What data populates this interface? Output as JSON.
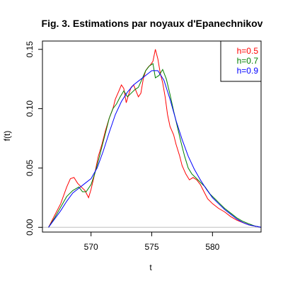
{
  "chart_data": {
    "type": "line",
    "title": "Fig. 3. Estimations par noyaux d'Epanechnikov",
    "xlabel": "t",
    "ylabel": "f(t)",
    "xlim": [
      566,
      584
    ],
    "ylim": [
      -0.004,
      0.157
    ],
    "x_ticks": [
      570,
      575,
      580
    ],
    "x_tick_labels": [
      "570",
      "575",
      "580"
    ],
    "y_ticks": [
      0.0,
      0.05,
      0.1,
      0.15
    ],
    "y_tick_labels": [
      "0.00",
      "0.05",
      "0.10",
      "0.15"
    ],
    "baseline": 0.0,
    "baseline_color": "#c0c0c0",
    "grid": false,
    "legend_position": "top-right",
    "series": [
      {
        "name": "h=0.5",
        "color": "#ff0000",
        "x": [
          566.5,
          567.0,
          567.5,
          568.0,
          568.3,
          568.6,
          568.9,
          569.2,
          569.5,
          569.8,
          570.0,
          570.3,
          570.6,
          570.9,
          571.2,
          571.5,
          571.8,
          572.0,
          572.3,
          572.5,
          572.7,
          572.9,
          573.1,
          573.3,
          573.5,
          573.7,
          573.9,
          574.1,
          574.3,
          574.5,
          574.7,
          574.9,
          575.1,
          575.3,
          575.5,
          575.7,
          575.9,
          576.1,
          576.3,
          576.5,
          576.8,
          577.0,
          577.3,
          577.5,
          577.8,
          578.1,
          578.4,
          578.7,
          579.0,
          579.3,
          579.6,
          580.0,
          580.5,
          581.0,
          581.5,
          582.0,
          582.5,
          583.0,
          583.5,
          584.0
        ],
        "y": [
          0.0,
          0.01,
          0.02,
          0.034,
          0.041,
          0.042,
          0.037,
          0.034,
          0.031,
          0.025,
          0.032,
          0.045,
          0.06,
          0.07,
          0.082,
          0.092,
          0.1,
          0.108,
          0.115,
          0.12,
          0.117,
          0.105,
          0.112,
          0.118,
          0.12,
          0.115,
          0.11,
          0.113,
          0.125,
          0.132,
          0.135,
          0.137,
          0.14,
          0.15,
          0.142,
          0.13,
          0.122,
          0.11,
          0.095,
          0.085,
          0.078,
          0.07,
          0.06,
          0.052,
          0.045,
          0.04,
          0.042,
          0.04,
          0.036,
          0.03,
          0.024,
          0.02,
          0.016,
          0.013,
          0.009,
          0.006,
          0.004,
          0.002,
          0.001,
          0.0
        ]
      },
      {
        "name": "h=0.7",
        "color": "#008000",
        "x": [
          566.5,
          567.0,
          567.5,
          568.0,
          568.5,
          569.0,
          569.3,
          569.6,
          570.0,
          570.3,
          570.6,
          570.9,
          571.2,
          571.5,
          571.8,
          572.1,
          572.4,
          572.7,
          573.0,
          573.3,
          573.6,
          573.9,
          574.2,
          574.5,
          574.8,
          575.1,
          575.3,
          575.6,
          575.9,
          576.2,
          576.5,
          576.8,
          577.1,
          577.4,
          577.7,
          578.0,
          578.3,
          578.6,
          579.0,
          579.4,
          579.8,
          580.2,
          580.6,
          581.0,
          581.5,
          582.0,
          582.5,
          583.0,
          583.5,
          584.0
        ],
        "y": [
          0.0,
          0.008,
          0.017,
          0.026,
          0.031,
          0.034,
          0.03,
          0.03,
          0.036,
          0.045,
          0.056,
          0.068,
          0.08,
          0.092,
          0.1,
          0.104,
          0.11,
          0.115,
          0.11,
          0.113,
          0.116,
          0.118,
          0.125,
          0.132,
          0.136,
          0.138,
          0.126,
          0.128,
          0.133,
          0.125,
          0.112,
          0.098,
          0.085,
          0.072,
          0.06,
          0.05,
          0.045,
          0.042,
          0.038,
          0.034,
          0.028,
          0.024,
          0.02,
          0.016,
          0.012,
          0.008,
          0.005,
          0.003,
          0.001,
          0.0
        ]
      },
      {
        "name": "h=0.9",
        "color": "#0000ff",
        "x": [
          566.5,
          567.0,
          567.5,
          568.0,
          568.5,
          569.0,
          569.5,
          570.0,
          570.5,
          571.0,
          571.5,
          572.0,
          572.5,
          573.0,
          573.5,
          574.0,
          574.5,
          575.0,
          575.5,
          576.0,
          576.5,
          577.0,
          577.5,
          578.0,
          578.5,
          579.0,
          579.5,
          580.0,
          580.5,
          581.0,
          581.5,
          582.0,
          582.5,
          583.0,
          583.5,
          584.0
        ],
        "y": [
          0.0,
          0.007,
          0.014,
          0.022,
          0.029,
          0.033,
          0.037,
          0.041,
          0.05,
          0.064,
          0.08,
          0.095,
          0.106,
          0.114,
          0.12,
          0.124,
          0.128,
          0.132,
          0.132,
          0.124,
          0.108,
          0.09,
          0.074,
          0.06,
          0.049,
          0.04,
          0.032,
          0.025,
          0.02,
          0.015,
          0.011,
          0.007,
          0.004,
          0.002,
          0.001,
          0.0
        ]
      }
    ]
  }
}
